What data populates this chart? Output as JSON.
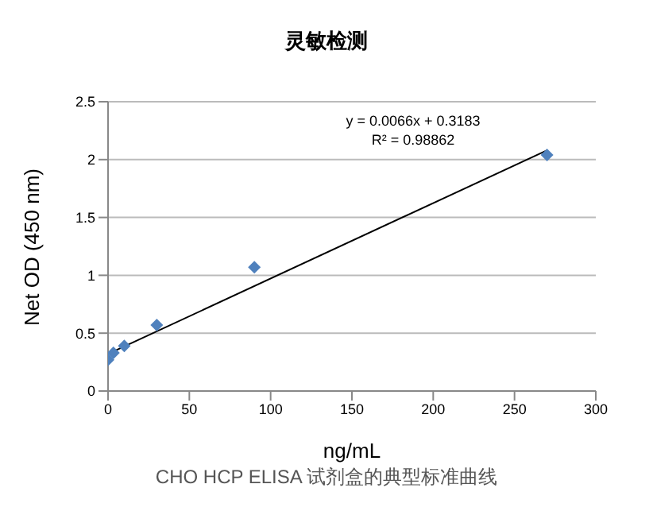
{
  "chart_data": {
    "type": "scatter",
    "title": "灵敏检测",
    "xlabel": "ng/mL",
    "ylabel": "Net OD (450 nm)",
    "annotations": [
      "y = 0.0066x + 0.3183",
      "R² = 0.98862",
      "CHO HCP ELISA 试剂盒的典型标准曲线"
    ],
    "series": [
      {
        "color": "#4f81bd",
        "x": [
          0,
          3.3,
          10,
          30,
          90,
          270
        ],
        "values": [
          0.27,
          0.33,
          0.39,
          0.57,
          1.07,
          2.04
        ],
        "marker": "diamond"
      },
      {
        "type": "line",
        "color": "#000000",
        "x": [
          0,
          270
        ],
        "values": [
          0.32,
          2.08
        ],
        "marker": "none"
      }
    ],
    "xlim": [
      0,
      300
    ],
    "xticks": [
      0,
      50,
      100,
      150,
      200,
      250,
      300
    ],
    "ylim": [
      0,
      2.5
    ],
    "yticks": [
      0,
      0.5,
      1,
      1.5,
      2,
      2.5
    ],
    "grid": "y",
    "legend": false
  }
}
